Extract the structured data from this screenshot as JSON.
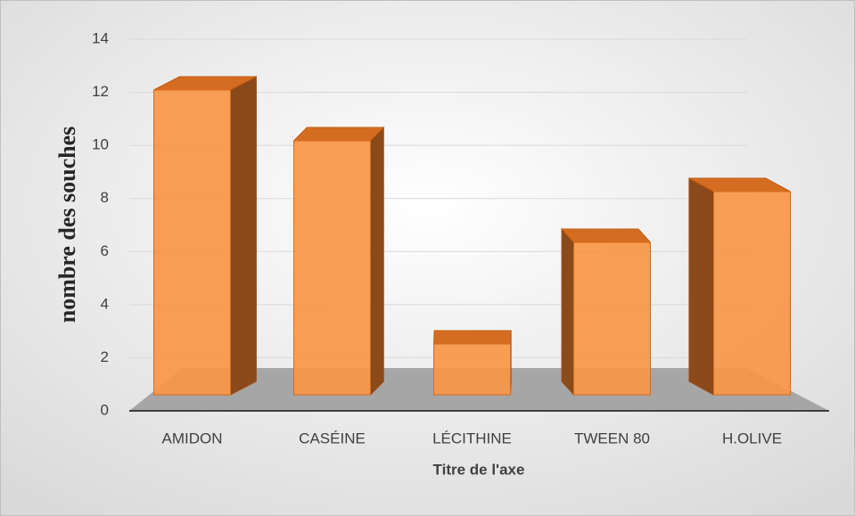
{
  "chart_data": {
    "type": "bar3d",
    "categories": [
      "AMIDON",
      "CASÉINE",
      "LÉCITHINE",
      "TWEEN 80",
      "H.OLIVE"
    ],
    "values": [
      12,
      10,
      2,
      6,
      8
    ],
    "color": "#f79646",
    "ylim": [
      0,
      14
    ],
    "yticks": [
      0,
      2,
      4,
      6,
      8,
      10,
      12,
      14
    ],
    "grid": true,
    "xlabel": "Titre de l'axe",
    "ylabel": "nombre des souches"
  }
}
